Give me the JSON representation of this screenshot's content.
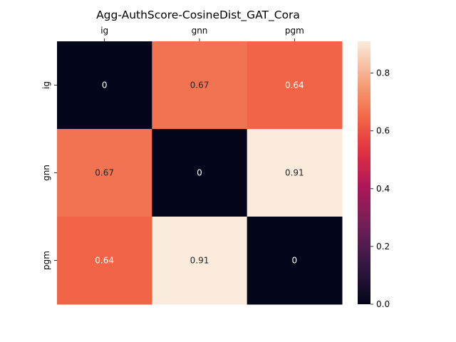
{
  "chart_data": {
    "type": "heatmap",
    "title": "Agg-AuthScore-CosineDist_GAT_Cora",
    "x_categories": [
      "ig",
      "gnn",
      "pgm"
    ],
    "y_categories": [
      "ig",
      "gnn",
      "pgm"
    ],
    "x_axis_position": "top",
    "values": [
      [
        0,
        0.67,
        0.64
      ],
      [
        0.67,
        0,
        0.91
      ],
      [
        0.64,
        0.91,
        0
      ]
    ],
    "annotations": [
      [
        "0",
        "0.67",
        "0.64"
      ],
      [
        "0.67",
        "0",
        "0.91"
      ],
      [
        "0.64",
        "0.91",
        "0"
      ]
    ],
    "colorbar": {
      "vmin": 0,
      "vmax": 0.91,
      "ticks": [
        0.0,
        0.2,
        0.4,
        0.6,
        0.8
      ],
      "tick_labels": [
        "0.0",
        "0.2",
        "0.4",
        "0.6",
        "0.8"
      ],
      "colormap": "rocket"
    },
    "grid": false,
    "legend": "colorbar-right"
  }
}
